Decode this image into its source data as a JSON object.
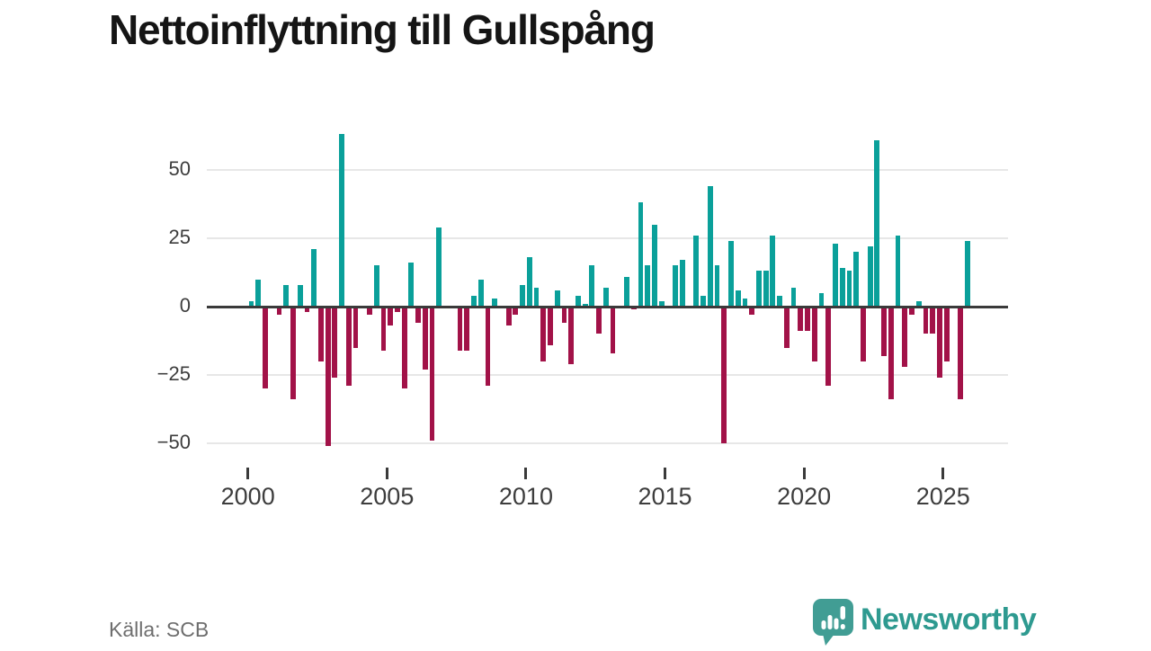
{
  "title": "Nettoinflyttning till Gullspång",
  "source": "Källa: SCB",
  "brand": {
    "name": "Newsworthy",
    "icon": "speech-bubble-bar-chart-icon"
  },
  "colors": {
    "positive_bar": "#0aa09a",
    "negative_bar": "#a21248",
    "axis": "#3a3a3a",
    "gridline": "#e7e7e7",
    "axis_text": "#3d3d3d",
    "muted_text": "#6e6e6e",
    "brand_teal": "#2e9a90",
    "title_text": "#151515"
  },
  "chart_data": {
    "type": "bar",
    "title": "Nettoinflyttning till Gullspång",
    "xlabel": "",
    "ylabel": "",
    "x_unit": "quarter",
    "start_year": 2000,
    "end": "2025 Q4",
    "quarters_per_year": 4,
    "x_tick_labels": [
      "2000",
      "2005",
      "2010",
      "2015",
      "2020",
      "2025"
    ],
    "y_ticks": [
      50,
      25,
      0,
      -25,
      -50
    ],
    "y_tick_labels": [
      "50",
      "25",
      "0",
      "−25",
      "−50"
    ],
    "ylim": [
      -55,
      67
    ],
    "grid": "horizontal",
    "legend": "none",
    "values": [
      2,
      10,
      -30,
      0,
      -3,
      8,
      -34,
      8,
      -2,
      21,
      -20,
      -51,
      -26,
      63,
      -29,
      -15,
      0,
      -3,
      15,
      -16,
      -7,
      -2,
      -30,
      16,
      -6,
      -23,
      -49,
      29,
      0,
      0,
      -16,
      -16,
      4,
      10,
      -29,
      3,
      0,
      -7,
      -3,
      8,
      18,
      7,
      -20,
      -14,
      6,
      -6,
      -21,
      4,
      1,
      15,
      -10,
      7,
      -17,
      0,
      11,
      -1,
      38,
      15,
      30,
      2,
      0,
      15,
      17,
      0,
      26,
      4,
      44,
      15,
      -50,
      24,
      6,
      3,
      -3,
      13,
      13,
      26,
      4,
      -15,
      7,
      -9,
      -9,
      -20,
      5,
      -29,
      23,
      14,
      13,
      20,
      -20,
      22,
      61,
      -18,
      -34,
      26,
      -22,
      -3,
      2,
      -10,
      -10,
      -26,
      -20,
      0,
      -34,
      24
    ]
  }
}
